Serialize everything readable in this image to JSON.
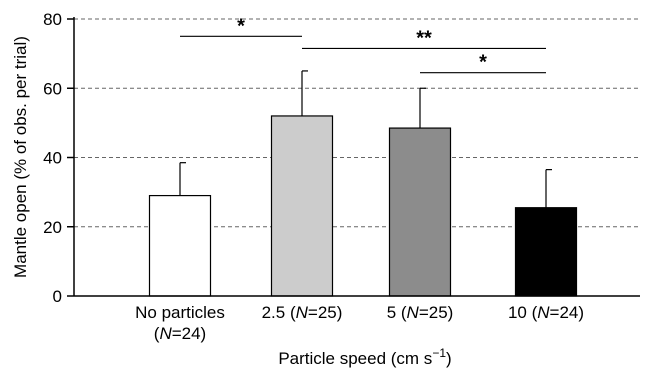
{
  "chart_data": {
    "type": "bar",
    "categories": [
      {
        "line1": "No particles",
        "line2_pre": "(",
        "line2_italic": "N",
        "line2_post": "=24)"
      },
      {
        "line1_pre": "2.5 (",
        "line1_italic": "N",
        "line1_post": "=25)"
      },
      {
        "line1_pre": "5 (",
        "line1_italic": "N",
        "line1_post": "=25)"
      },
      {
        "line1_pre": "10 (",
        "line1_italic": "N",
        "line1_post": "=24)"
      }
    ],
    "values": [
      29,
      52,
      48.5,
      25.5
    ],
    "errors": [
      9.5,
      13,
      11.5,
      11
    ],
    "bar_colors": [
      "#ffffff",
      "#cccccc",
      "#8c8c8c",
      "#000000"
    ],
    "xlabel": "Particle speed (cm s",
    "xlabel_superscript": "−1",
    "xlabel_close": ")",
    "ylabel": "Mantle open (% of obs. per trial)",
    "ylim": [
      0,
      80
    ],
    "yticks": [
      0,
      20,
      40,
      60,
      80
    ],
    "grid": "dashed horizontal at each tick",
    "significance": [
      {
        "from_category": 0,
        "to_category": 1,
        "y": 75,
        "label": "*"
      },
      {
        "from_category": 1,
        "to_category": 3,
        "y": 71.5,
        "label": "**"
      },
      {
        "from_category": 2,
        "to_category": 3,
        "y": 64.5,
        "label": "*"
      }
    ]
  }
}
